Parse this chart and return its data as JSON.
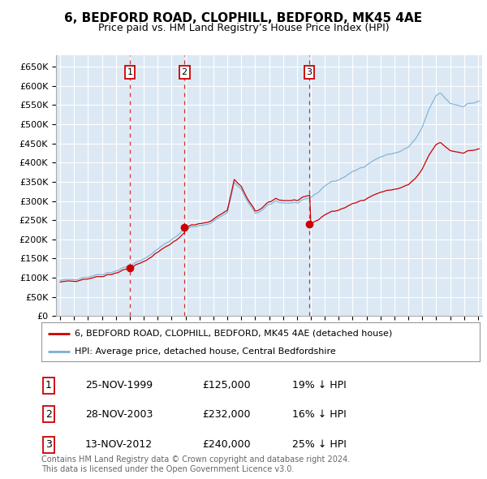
{
  "title": "6, BEDFORD ROAD, CLOPHILL, BEDFORD, MK45 4AE",
  "subtitle": "Price paid vs. HM Land Registry’s House Price Index (HPI)",
  "ylim": [
    0,
    680000
  ],
  "xlim_start": 1994.7,
  "xlim_end": 2025.3,
  "plot_bg_color": "#dce9f5",
  "grid_color": "#ffffff",
  "sale_dates": [
    2000.0,
    2003.92,
    2012.88
  ],
  "sale_prices": [
    125000,
    232000,
    240000
  ],
  "sale_labels": [
    "1",
    "2",
    "3"
  ],
  "legend_line1": "6, BEDFORD ROAD, CLOPHILL, BEDFORD, MK45 4AE (detached house)",
  "legend_line2": "HPI: Average price, detached house, Central Bedfordshire",
  "table_data": [
    [
      "1",
      "25-NOV-1999",
      "£125,000",
      "19% ↓ HPI"
    ],
    [
      "2",
      "28-NOV-2003",
      "£232,000",
      "16% ↓ HPI"
    ],
    [
      "3",
      "13-NOV-2012",
      "£240,000",
      "25% ↓ HPI"
    ]
  ],
  "footer": "Contains HM Land Registry data © Crown copyright and database right 2024.\nThis data is licensed under the Open Government Licence v3.0.",
  "red_color": "#cc0000",
  "blue_color": "#7ab0d4",
  "title_fontsize": 11,
  "subtitle_fontsize": 9
}
